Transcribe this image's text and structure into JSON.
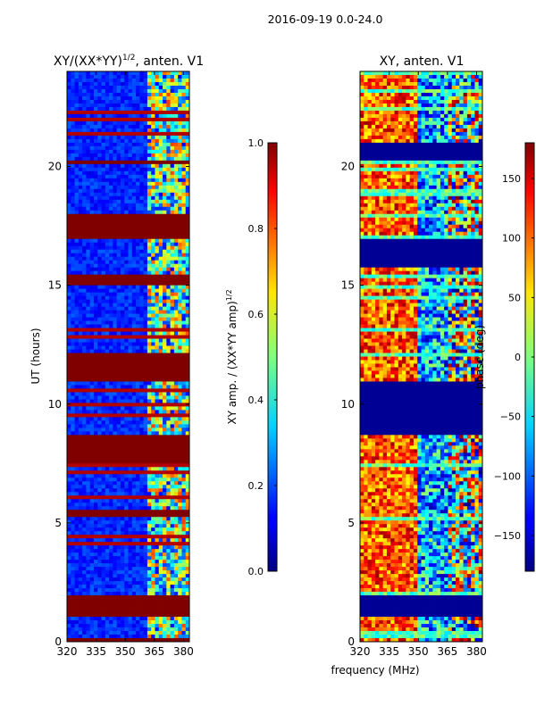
{
  "chart_data": {
    "suptitle": "2016-09-19 0.0-24.0",
    "xlabel": "frequency (MHz)",
    "panels": [
      {
        "type": "heatmap",
        "title_main": "XY/(XX*YY)",
        "title_exp": "1/2",
        "title_tail": ", anten. V1",
        "ylabel": "UT (hours)",
        "xlim": [
          320,
          383
        ],
        "ylim": [
          0,
          24
        ],
        "xticks": [
          "320",
          "335",
          "350",
          "365",
          "380"
        ],
        "yticks": [
          "0",
          "5",
          "10",
          "15",
          "20"
        ],
        "colorbar_label": "XY amp. / (XX*YY amp)",
        "colorbar_label_exp": "1/2",
        "colorbar_ticks": [
          "0.0",
          "0.2",
          "0.4",
          "0.6",
          "0.8",
          "1.0"
        ],
        "colorbar_range": [
          0.0,
          1.0
        ],
        "saturated_bands_hours": [
          [
            0.0,
            0.15
          ],
          [
            1.0,
            2.0
          ],
          [
            5.2,
            5.5
          ],
          [
            7.5,
            8.7
          ],
          [
            11.0,
            12.1
          ],
          [
            15.0,
            15.4
          ],
          [
            17.0,
            18.0
          ],
          [
            20.1,
            20.3
          ]
        ]
      },
      {
        "type": "heatmap",
        "title_main": "XY, anten. V1",
        "ylabel": "",
        "xlim": [
          320,
          383
        ],
        "ylim": [
          0,
          24
        ],
        "xticks": [
          "320",
          "335",
          "350",
          "365",
          "380"
        ],
        "yticks": [
          "0",
          "5",
          "10",
          "15",
          "20"
        ],
        "colorbar_label": "phase (deg)",
        "colorbar_ticks": [
          "−150",
          "−100",
          "−50",
          "0",
          "50",
          "100",
          "150"
        ],
        "colorbar_range": [
          -180,
          180
        ],
        "blank_bands_hours": [
          [
            1.1,
            2.0
          ],
          [
            8.7,
            11.0
          ],
          [
            15.8,
            17.0
          ],
          [
            20.3,
            21.0
          ]
        ]
      }
    ]
  }
}
